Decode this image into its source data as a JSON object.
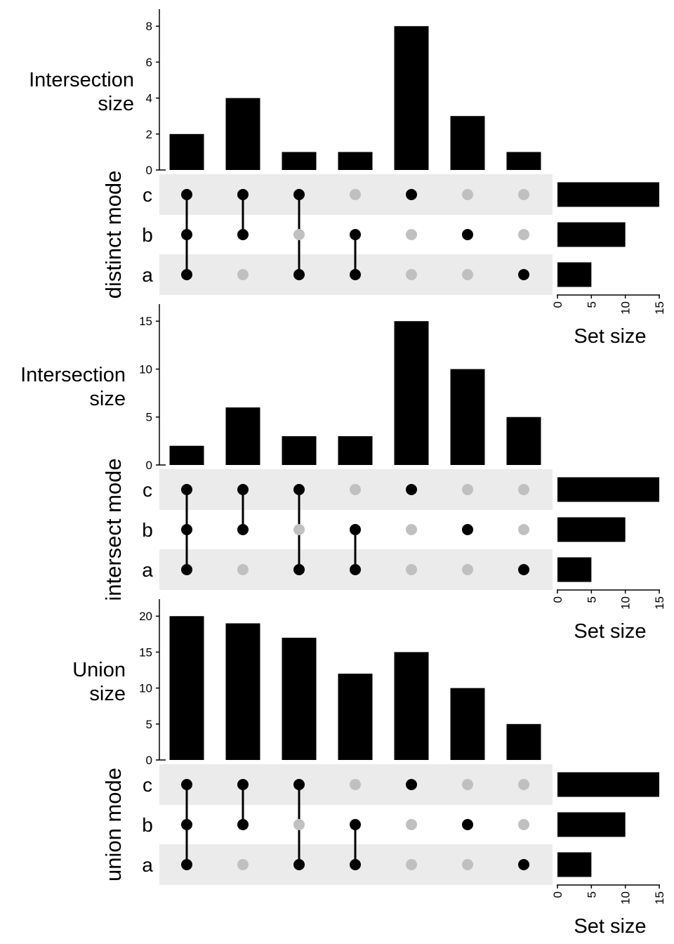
{
  "chart_data": [
    {
      "type": "bar",
      "mode_label": "distinct mode",
      "ylabel_lines": [
        "Intersection",
        "size"
      ],
      "ylim": [
        0,
        8.4
      ],
      "yticks": [
        0,
        2,
        4,
        6,
        8
      ],
      "values": [
        2,
        4,
        1,
        1,
        8,
        3,
        1
      ],
      "sets": [
        "c",
        "b",
        "a"
      ],
      "combinations": [
        [
          "c",
          "b",
          "a"
        ],
        [
          "c",
          "b"
        ],
        [
          "c",
          "a"
        ],
        [
          "b",
          "a"
        ],
        [
          "c"
        ],
        [
          "b"
        ],
        [
          "a"
        ]
      ],
      "set_sizes": [
        15,
        10,
        5
      ],
      "set_size_ticks": [
        0,
        5,
        10,
        15
      ],
      "set_size_label": "Set size"
    },
    {
      "type": "bar",
      "mode_label": "intersect mode",
      "ylabel_lines": [
        "Intersection",
        "size"
      ],
      "ylim": [
        0,
        15.75
      ],
      "yticks": [
        0,
        5,
        10,
        15
      ],
      "values": [
        2,
        6,
        3,
        3,
        15,
        10,
        5
      ],
      "sets": [
        "c",
        "b",
        "a"
      ],
      "combinations": [
        [
          "c",
          "b",
          "a"
        ],
        [
          "c",
          "b"
        ],
        [
          "c",
          "a"
        ],
        [
          "b",
          "a"
        ],
        [
          "c"
        ],
        [
          "b"
        ],
        [
          "a"
        ]
      ],
      "set_sizes": [
        15,
        10,
        5
      ],
      "set_size_ticks": [
        0,
        5,
        10,
        15
      ],
      "set_size_label": "Set size"
    },
    {
      "type": "bar",
      "mode_label": "union mode",
      "ylabel_lines": [
        "Union",
        "size"
      ],
      "ylim": [
        0,
        21
      ],
      "yticks": [
        0,
        5,
        10,
        15,
        20
      ],
      "values": [
        20,
        19,
        17,
        12,
        15,
        10,
        5
      ],
      "sets": [
        "c",
        "b",
        "a"
      ],
      "combinations": [
        [
          "c",
          "b",
          "a"
        ],
        [
          "c",
          "b"
        ],
        [
          "c",
          "a"
        ],
        [
          "b",
          "a"
        ],
        [
          "c"
        ],
        [
          "b"
        ],
        [
          "a"
        ]
      ],
      "set_sizes": [
        15,
        10,
        5
      ],
      "set_size_ticks": [
        0,
        5,
        10,
        15
      ],
      "set_size_label": "Set size"
    }
  ],
  "colors": {
    "bar": "#000000",
    "dot_active": "#000000",
    "dot_inactive": "#c0c0c0",
    "band": "#ebebeb",
    "axis": "#000000"
  }
}
